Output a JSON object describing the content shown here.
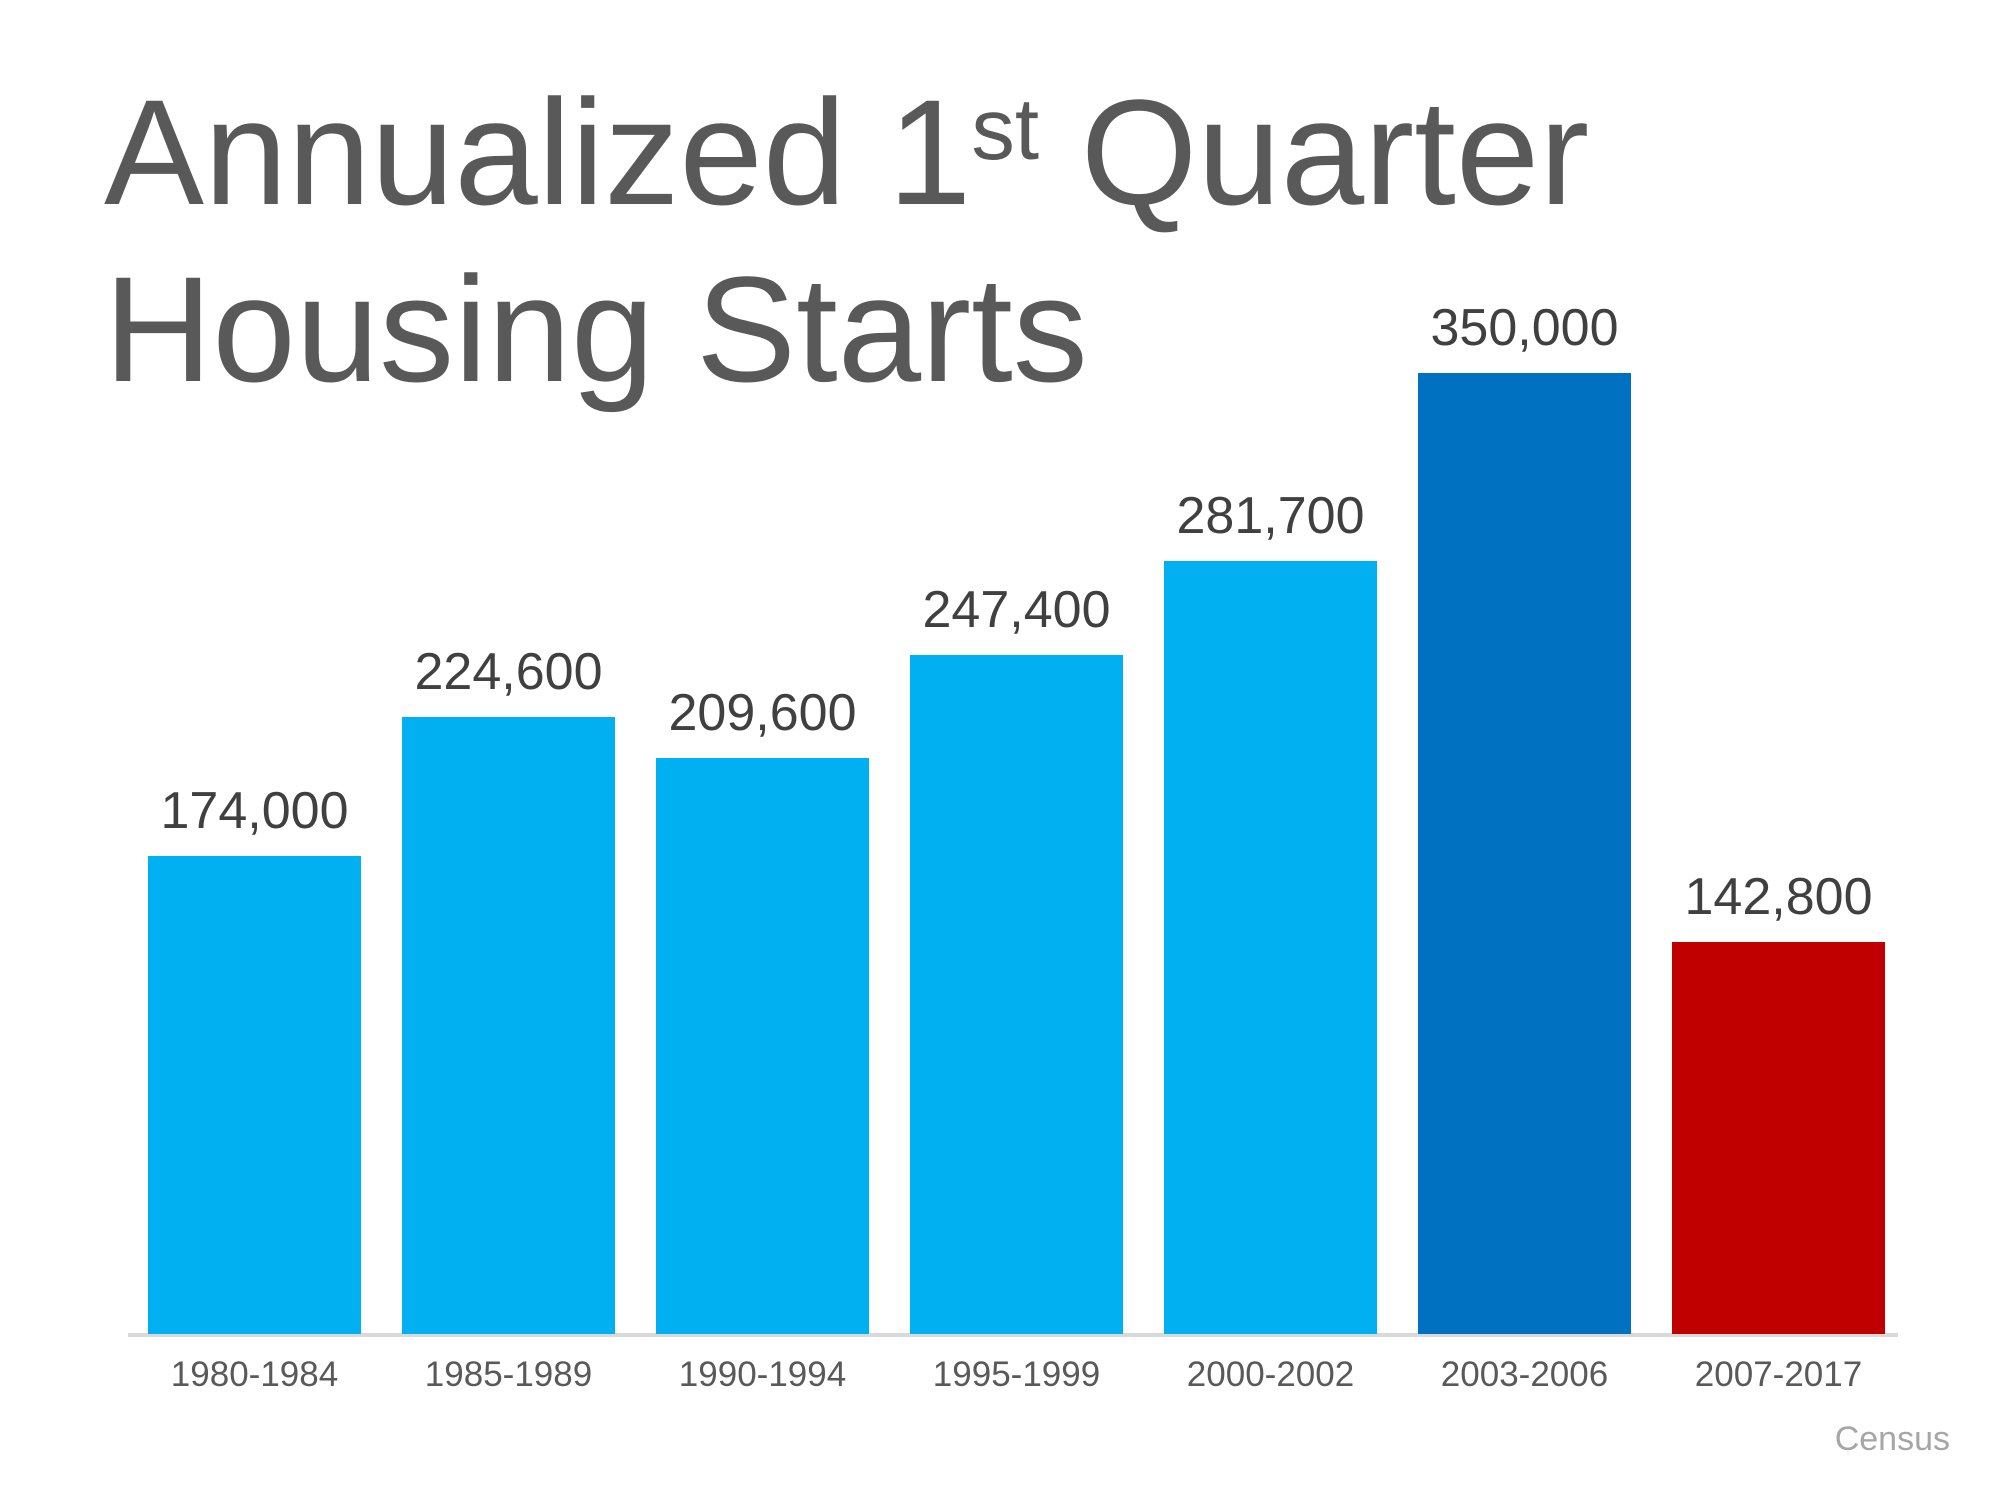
{
  "slide": {
    "title": {
      "line1_prefix": "Annualized 1",
      "line1_sup": "st",
      "line1_suffix": " Quarter",
      "line2": "Housing Starts"
    }
  },
  "colors": {
    "light_blue": "#00B0F0",
    "dark_blue": "#0070C0",
    "red": "#C00000",
    "title_gray": "#595959",
    "value_label_gray": "#404040",
    "axis_label_gray": "#595959",
    "axis_line_gray": "#D9D9D9",
    "source_gray": "#A6A6A6"
  },
  "chart_data": {
    "type": "bar",
    "title": "Annualized 1st Quarter Housing Starts",
    "categories": [
      "1980-1984",
      "1985-1989",
      "1990-1994",
      "1995-1999",
      "2000-2002",
      "2003-2006",
      "2007-2017"
    ],
    "values": [
      174000,
      224600,
      209600,
      247400,
      281700,
      350000,
      142800
    ],
    "value_labels": [
      "174,000",
      "224,600",
      "209,600",
      "247,400",
      "281,700",
      "350,000",
      "142,800"
    ],
    "bar_color_keys": [
      "light_blue",
      "light_blue",
      "light_blue",
      "light_blue",
      "light_blue",
      "dark_blue",
      "red"
    ],
    "xlabel": "",
    "ylabel": "",
    "ylim": [
      0,
      365000
    ],
    "grid": false,
    "legend": false,
    "source": "Census"
  }
}
